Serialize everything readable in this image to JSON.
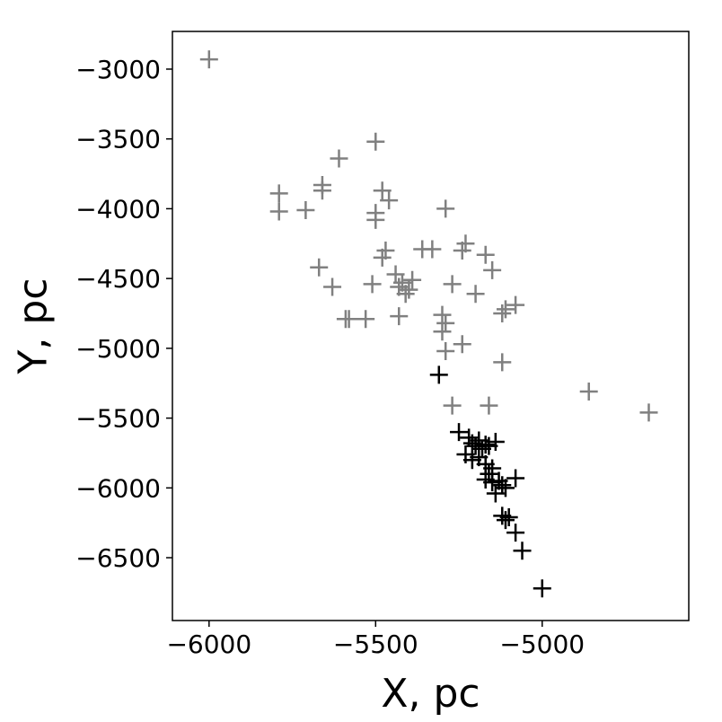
{
  "chart_data": {
    "type": "scatter",
    "title": "",
    "xlabel": "X, pc",
    "ylabel": "Y, pc",
    "xlim": [
      -6110,
      -4560
    ],
    "ylim": [
      -6950,
      -2730
    ],
    "grid": false,
    "marker": "plus",
    "xticks": [
      {
        "value": -6000,
        "label": "−6000"
      },
      {
        "value": -5500,
        "label": "−5500"
      },
      {
        "value": -5000,
        "label": "−5000"
      }
    ],
    "yticks": [
      {
        "value": -3000,
        "label": "−3000"
      },
      {
        "value": -3500,
        "label": "−3500"
      },
      {
        "value": -4000,
        "label": "−4000"
      },
      {
        "value": -4500,
        "label": "−4500"
      },
      {
        "value": -5000,
        "label": "−5000"
      },
      {
        "value": -5500,
        "label": "−5500"
      },
      {
        "value": -6000,
        "label": "−6000"
      },
      {
        "value": -6500,
        "label": "−6500"
      }
    ],
    "series": [
      {
        "color": "#808080",
        "points": [
          [
            -6000,
            -2930
          ],
          [
            -5500,
            -3520
          ],
          [
            -5610,
            -3640
          ],
          [
            -5660,
            -3830
          ],
          [
            -5660,
            -3870
          ],
          [
            -5790,
            -3890
          ],
          [
            -5790,
            -4020
          ],
          [
            -5710,
            -4010
          ],
          [
            -5480,
            -3870
          ],
          [
            -5460,
            -3940
          ],
          [
            -5500,
            -4030
          ],
          [
            -5500,
            -4080
          ],
          [
            -5290,
            -4000
          ],
          [
            -5470,
            -4300
          ],
          [
            -5480,
            -4350
          ],
          [
            -5360,
            -4290
          ],
          [
            -5330,
            -4290
          ],
          [
            -5230,
            -4250
          ],
          [
            -5240,
            -4300
          ],
          [
            -5170,
            -4330
          ],
          [
            -5150,
            -4440
          ],
          [
            -5670,
            -4420
          ],
          [
            -5630,
            -4560
          ],
          [
            -5510,
            -4540
          ],
          [
            -5440,
            -4470
          ],
          [
            -5420,
            -4530
          ],
          [
            -5430,
            -4560
          ],
          [
            -5400,
            -4580
          ],
          [
            -5390,
            -4510
          ],
          [
            -5410,
            -4610
          ],
          [
            -5270,
            -4540
          ],
          [
            -5200,
            -4610
          ],
          [
            -5580,
            -4790
          ],
          [
            -5590,
            -4790
          ],
          [
            -5530,
            -4790
          ],
          [
            -5430,
            -4770
          ],
          [
            -5300,
            -4760
          ],
          [
            -5290,
            -4820
          ],
          [
            -5300,
            -4880
          ],
          [
            -5110,
            -4720
          ],
          [
            -5080,
            -4690
          ],
          [
            -5120,
            -4750
          ],
          [
            -5290,
            -5020
          ],
          [
            -5240,
            -4970
          ],
          [
            -5120,
            -5100
          ],
          [
            -5270,
            -5410
          ],
          [
            -5160,
            -5410
          ],
          [
            -4860,
            -5310
          ],
          [
            -4680,
            -5460
          ]
        ]
      },
      {
        "color": "#000000",
        "points": [
          [
            -5310,
            -5190
          ],
          [
            -5250,
            -5600
          ],
          [
            -5220,
            -5640
          ],
          [
            -5210,
            -5680
          ],
          [
            -5200,
            -5700
          ],
          [
            -5190,
            -5660
          ],
          [
            -5180,
            -5720
          ],
          [
            -5170,
            -5690
          ],
          [
            -5160,
            -5700
          ],
          [
            -5140,
            -5670
          ],
          [
            -5230,
            -5760
          ],
          [
            -5210,
            -5800
          ],
          [
            -5190,
            -5780
          ],
          [
            -5170,
            -5830
          ],
          [
            -5150,
            -5860
          ],
          [
            -5160,
            -5900
          ],
          [
            -5170,
            -5940
          ],
          [
            -5150,
            -5960
          ],
          [
            -5130,
            -5950
          ],
          [
            -5120,
            -5980
          ],
          [
            -5110,
            -6000
          ],
          [
            -5140,
            -6040
          ],
          [
            -5080,
            -5930
          ],
          [
            -5120,
            -6200
          ],
          [
            -5110,
            -6230
          ],
          [
            -5100,
            -6210
          ],
          [
            -5080,
            -6320
          ],
          [
            -5060,
            -6450
          ],
          [
            -5000,
            -6720
          ]
        ]
      }
    ]
  }
}
